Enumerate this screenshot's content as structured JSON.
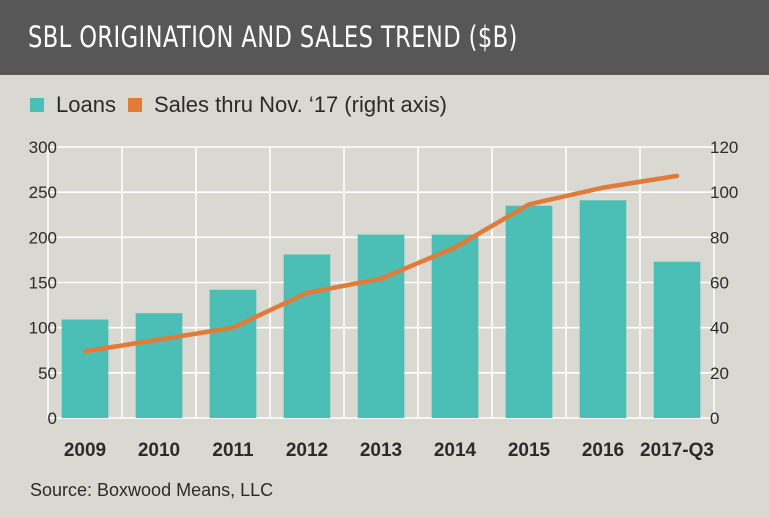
{
  "header": {
    "title": "SBL ORIGINATION AND SALES TREND ($B)"
  },
  "legend": [
    {
      "label": "Loans",
      "color": "#4bbfb5"
    },
    {
      "label": "Sales thru Nov. ‘17 (right axis)",
      "color": "#e07b39"
    }
  ],
  "source": "Source: Boxwood Means, LLC",
  "chart_data": {
    "type": "bar",
    "title": "SBL ORIGINATION AND SALES TREND ($B)",
    "xlabel": "",
    "ylabel": "",
    "categories": [
      "2009",
      "2010",
      "2011",
      "2012",
      "2013",
      "2014",
      "2015",
      "2016",
      "2017-Q3"
    ],
    "series": [
      {
        "name": "Loans",
        "type": "bar",
        "axis": "left",
        "color": "#4bbfb5",
        "values": [
          109,
          116,
          142,
          181,
          203,
          203,
          235,
          241,
          173
        ]
      },
      {
        "name": "Sales thru Nov. ‘17 (right axis)",
        "type": "line",
        "axis": "right",
        "color": "#e07b39",
        "values": [
          29.5,
          34.7,
          40,
          55.4,
          61.7,
          75.5,
          94.6,
          102,
          107.2
        ]
      }
    ],
    "ylim": [
      0,
      300
    ],
    "yticks": [
      0,
      50,
      100,
      150,
      200,
      250,
      300
    ],
    "y2lim": [
      0,
      120
    ],
    "y2ticks": [
      0,
      20,
      40,
      60,
      80,
      100,
      120
    ],
    "grid": true,
    "legend_position": "top-left"
  }
}
